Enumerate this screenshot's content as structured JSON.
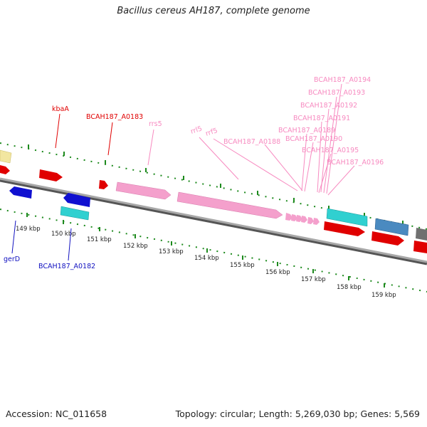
{
  "title": "Bacillus cereus AH187, complete genome",
  "footer": {
    "accession": "Accession: NC_011658",
    "topology": "Topology: circular; Length: 5,269,030 bp; Genes: 5,569"
  },
  "colors": {
    "red_label": "#e00000",
    "pink_label": "#f78ac0",
    "blue_label": "#1010c0",
    "tick_green": "#1d8a1d",
    "backbone": "#8a8a8a"
  },
  "scale": {
    "ticks": [
      "149 kbp",
      "150 kbp",
      "151 kbp",
      "152 kbp",
      "153 kbp",
      "154 kbp",
      "155 kbp",
      "156 kbp",
      "157 kbp",
      "158 kbp",
      "159 kbp"
    ]
  },
  "gene_labels": {
    "kbaA": "kbaA",
    "a0183": "BCAH187_A0183",
    "rrs5": "rrs5",
    "rrl5": "rrl5",
    "rrf5": "rrf5",
    "a0188": "BCAH187_A0188",
    "a0194": "BCAH187_A0194",
    "a0193": "BCAH187_A0193",
    "a0192": "BCAH187_A0192",
    "a0191": "BCAH187_A0191",
    "a0189": "BCAH187_A0189",
    "a0190": "BCAH187_A0190",
    "a0195": "BCAH187_A0195",
    "a0196": "BCAH187_A0196",
    "gerD": "gerD",
    "a0182": "BCAH187_A0182"
  }
}
